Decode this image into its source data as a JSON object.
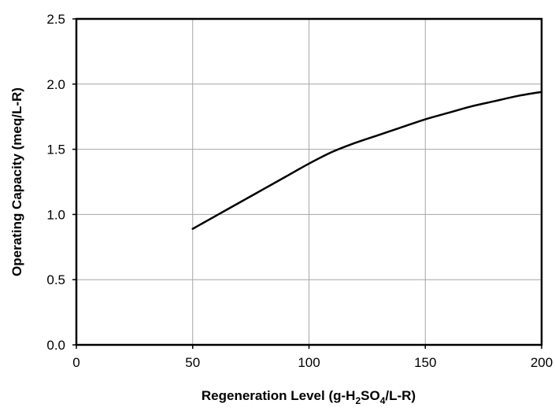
{
  "chart_data": {
    "type": "line",
    "title": "",
    "xlabel": {
      "prefix": "Regeneration Level (g-H",
      "sub1": "2",
      "middle": "SO",
      "sub2": "4",
      "suffix": "/L-R)"
    },
    "ylabel": "Operating Capacity (meq/L-R)",
    "xlim": [
      0,
      200
    ],
    "ylim": [
      0,
      2.5
    ],
    "xticks": [
      0,
      50,
      100,
      150,
      200
    ],
    "yticks": [
      0,
      0.5,
      1.0,
      1.5,
      2.0,
      2.5
    ],
    "xtick_labels": [
      "0",
      "50",
      "100",
      "150",
      "200"
    ],
    "ytick_labels": [
      "0.0",
      "0.5",
      "1.0",
      "1.5",
      "2.0",
      "2.5"
    ],
    "grid": true,
    "series": [
      {
        "x": [
          50,
          60,
          70,
          80,
          90,
          100,
          110,
          120,
          130,
          140,
          150,
          160,
          170,
          180,
          190,
          200
        ],
        "y": [
          0.89,
          0.99,
          1.09,
          1.19,
          1.29,
          1.39,
          1.48,
          1.55,
          1.61,
          1.67,
          1.73,
          1.78,
          1.83,
          1.87,
          1.91,
          1.94
        ]
      }
    ]
  }
}
